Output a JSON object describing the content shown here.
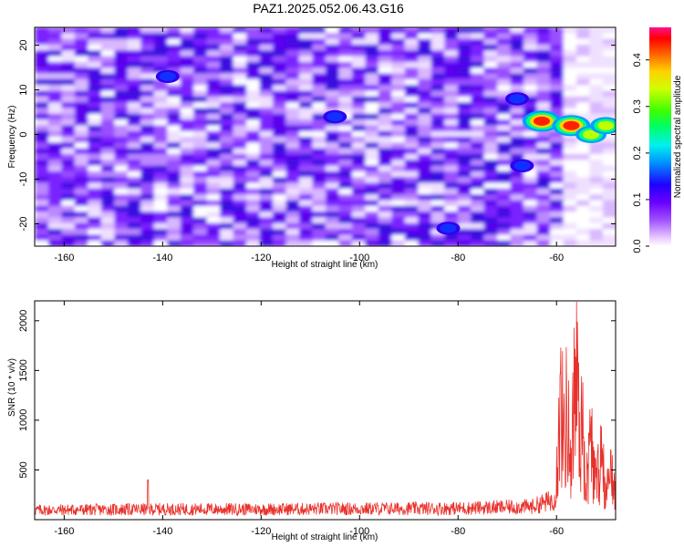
{
  "title": "PAZ1.2025.052.06.43.G16",
  "chart_data": [
    {
      "type": "heatmap",
      "xlabel": "Height of straight line (km)",
      "ylabel": "Frequency (Hz)",
      "xlim": [
        -166,
        -48
      ],
      "ylim": [
        -25,
        24
      ],
      "xticks": [
        -160,
        -140,
        -120,
        -100,
        -80,
        -60
      ],
      "yticks": [
        -20,
        -10,
        0,
        10,
        20
      ],
      "colorbar": {
        "label": "Normalized spectral amplitude",
        "range": [
          0.0,
          0.47
        ],
        "ticks": [
          0.0,
          0.1,
          0.2,
          0.3,
          0.4
        ],
        "colormap": "rainbow (white-violet-blue-cyan-green-yellow-red-pink)"
      },
      "description_points": [
        {
          "x": -63,
          "y": 3,
          "value": 0.4
        },
        {
          "x": -57,
          "y": 2,
          "value": 0.45
        },
        {
          "x": -53,
          "y": 0,
          "value": 0.35
        },
        {
          "x": -50,
          "y": 2,
          "value": 0.3
        },
        {
          "x": -68,
          "y": 8,
          "value": 0.12
        },
        {
          "x": -67,
          "y": -7,
          "value": 0.1
        },
        {
          "x": -139,
          "y": 13,
          "value": 0.12
        },
        {
          "x": -105,
          "y": 4,
          "value": 0.1
        },
        {
          "x": -82,
          "y": -21,
          "value": 0.1
        }
      ]
    },
    {
      "type": "line",
      "xlabel": "Height of straight line (km)",
      "ylabel": "SNR (10 * v/v)",
      "xlim": [
        -166,
        -48
      ],
      "ylim": [
        0,
        2200
      ],
      "xticks": [
        -160,
        -140,
        -120,
        -100,
        -80,
        -60
      ],
      "yticks": [
        500,
        1000,
        1500,
        2000
      ],
      "series": [
        {
          "color": "#e8302a",
          "baseline_points": [
            {
              "x": -166,
              "y": 110
            },
            {
              "x": -140,
              "y": 120
            },
            {
              "x": -120,
              "y": 120
            },
            {
              "x": -100,
              "y": 125
            },
            {
              "x": -80,
              "y": 130
            },
            {
              "x": -65,
              "y": 150
            },
            {
              "x": -61,
              "y": 220
            },
            {
              "x": -60,
              "y": 300
            }
          ],
          "spikes": [
            {
              "x": -143,
              "y": 400
            },
            {
              "x": -59,
              "y": 1750
            },
            {
              "x": -58,
              "y": 1800
            },
            {
              "x": -56,
              "y": 2200
            },
            {
              "x": -55,
              "y": 1500
            },
            {
              "x": -53,
              "y": 1150
            },
            {
              "x": -51,
              "y": 950
            },
            {
              "x": -49,
              "y": 700
            }
          ]
        }
      ]
    }
  ]
}
